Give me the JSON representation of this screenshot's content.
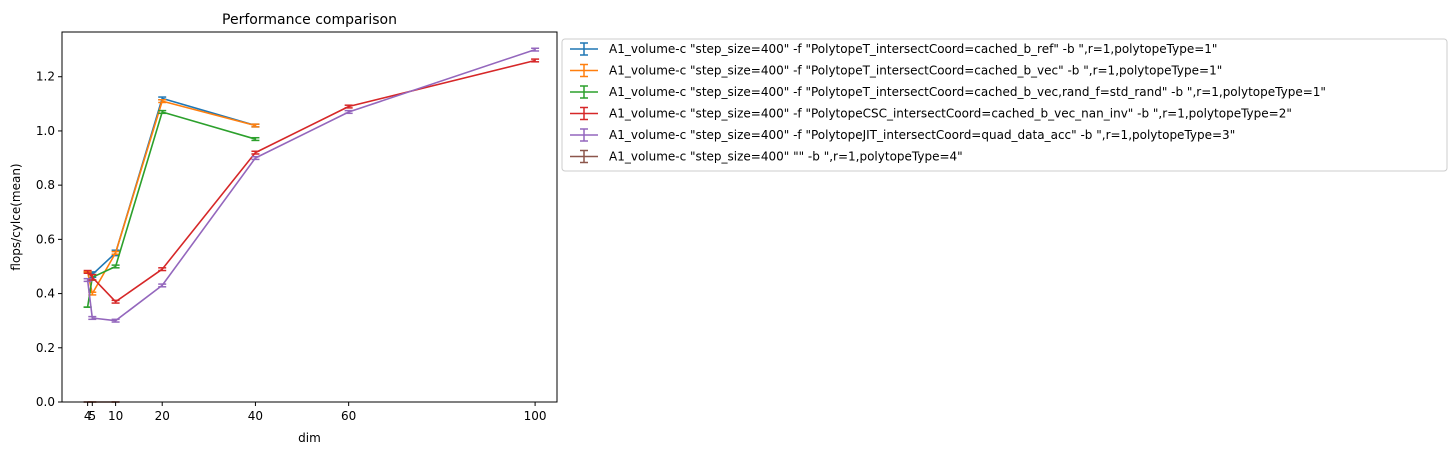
{
  "chart_data": {
    "type": "line",
    "title": "Performance comparison",
    "xlabel": "dim",
    "ylabel": "flops/cylce(mean)",
    "xticks": [
      4,
      5,
      10,
      20,
      40,
      60,
      100
    ],
    "yticks": [
      0.0,
      0.2,
      0.4,
      0.6,
      0.8,
      1.0,
      1.2
    ],
    "xlim": [
      -1.5,
      104.7
    ],
    "ylim": [
      0,
      1.365
    ],
    "grid": false,
    "legend_position": "outside-right-top",
    "error_bars": true,
    "series": [
      {
        "name": "A1_volume-c \"step_size=400\" -f \"PolytopeT_intersectCoord=cached_b_ref\" -b \",r=1,polytopeType=1\"",
        "color": "#1f77b4",
        "points": [
          {
            "x": 4,
            "y": 0.48,
            "err": 0.0
          },
          {
            "x": 5,
            "y": 0.47,
            "err": 0.01
          },
          {
            "x": 10,
            "y": 0.55,
            "err": 0.01
          },
          {
            "x": 20,
            "y": 1.12,
            "err": 0.005
          },
          {
            "x": 40,
            "y": 1.02,
            "err": 0.005
          }
        ]
      },
      {
        "name": "A1_volume-c \"step_size=400\" -f \"PolytopeT_intersectCoord=cached_b_vec\" -b \",r=1,polytopeType=1\"",
        "color": "#ff7f0e",
        "points": [
          {
            "x": 4,
            "y": 0.48,
            "err": 0.0
          },
          {
            "x": 5,
            "y": 0.4,
            "err": 0.005
          },
          {
            "x": 10,
            "y": 0.55,
            "err": 0.005
          },
          {
            "x": 20,
            "y": 1.11,
            "err": 0.005
          },
          {
            "x": 40,
            "y": 1.02,
            "err": 0.005
          }
        ]
      },
      {
        "name": "A1_volume-c \"step_size=400\" -f \"PolytopeT_intersectCoord=cached_b_vec,rand_f=std_rand\" -b \",r=1,polytopeType=1\"",
        "color": "#2ca02c",
        "points": [
          {
            "x": 4,
            "y": 0.35,
            "err": 0.0
          },
          {
            "x": 5,
            "y": 0.46,
            "err": 0.01
          },
          {
            "x": 10,
            "y": 0.5,
            "err": 0.005
          },
          {
            "x": 20,
            "y": 1.07,
            "err": 0.005
          },
          {
            "x": 40,
            "y": 0.97,
            "err": 0.005
          }
        ]
      },
      {
        "name": "A1_volume-c \"step_size=400\" -f \"PolytopeCSC_intersectCoord=cached_b_vec_nan_inv\" -b \",r=1,polytopeType=2\"",
        "color": "#d62728",
        "points": [
          {
            "x": 4,
            "y": 0.48,
            "err": 0.005
          },
          {
            "x": 5,
            "y": 0.46,
            "err": 0.01
          },
          {
            "x": 10,
            "y": 0.37,
            "err": 0.005
          },
          {
            "x": 20,
            "y": 0.49,
            "err": 0.005
          },
          {
            "x": 40,
            "y": 0.92,
            "err": 0.005
          },
          {
            "x": 60,
            "y": 1.09,
            "err": 0.005
          },
          {
            "x": 100,
            "y": 1.26,
            "err": 0.005
          }
        ]
      },
      {
        "name": "A1_volume-c \"step_size=400\" -f \"PolytopeJIT_intersectCoord=quad_data_acc\" -b \",r=1,polytopeType=3\"",
        "color": "#9467bd",
        "points": [
          {
            "x": 4,
            "y": 0.45,
            "err": 0.005
          },
          {
            "x": 5,
            "y": 0.31,
            "err": 0.005
          },
          {
            "x": 10,
            "y": 0.3,
            "err": 0.005
          },
          {
            "x": 20,
            "y": 0.43,
            "err": 0.005
          },
          {
            "x": 40,
            "y": 0.9,
            "err": 0.005
          },
          {
            "x": 60,
            "y": 1.07,
            "err": 0.005
          },
          {
            "x": 100,
            "y": 1.3,
            "err": 0.005
          }
        ]
      },
      {
        "name": "A1_volume-c \"step_size=400\"  \"\" -b \",r=1,polytopeType=4\"",
        "color": "#8c564b",
        "points": [
          {
            "x": 4,
            "y": 0.0,
            "err": 0.0
          },
          {
            "x": 5,
            "y": 0.0,
            "err": 0.0
          },
          {
            "x": 10,
            "y": 0.0,
            "err": 0.0
          }
        ]
      }
    ]
  }
}
